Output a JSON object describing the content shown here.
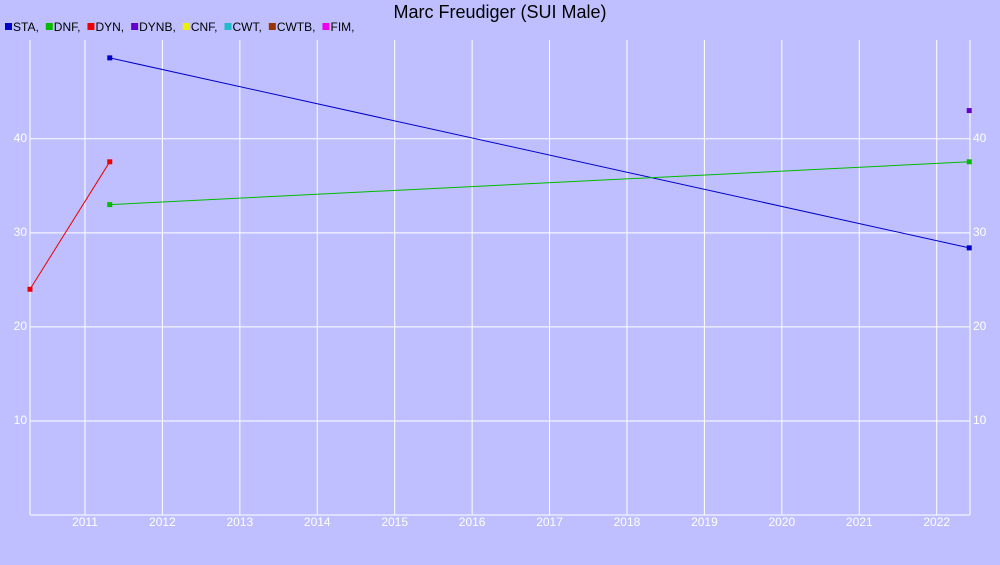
{
  "chart_data": {
    "type": "line",
    "title": "Marc Freudiger (SUI Male)",
    "series": [
      {
        "name": "STA,",
        "color": "#0000cc",
        "x": [
          2011.32,
          2022.42
        ],
        "values": [
          48.6,
          28.4
        ]
      },
      {
        "name": "DNF,",
        "color": "#00bb00",
        "x": [
          2011.32,
          2022.42
        ],
        "values": [
          33.0,
          37.55
        ]
      },
      {
        "name": "DYN,",
        "color": "#ee0000",
        "x": [
          2010.29,
          2011.32
        ],
        "values": [
          24.0,
          37.55
        ]
      },
      {
        "name": "DYNB,",
        "color": "#6600cc",
        "x": [
          2022.42
        ],
        "values": [
          43.0
        ]
      },
      {
        "name": "CNF,",
        "color": "#eeee00",
        "x": [],
        "values": []
      },
      {
        "name": "CWT,",
        "color": "#22bbcc",
        "x": [],
        "values": []
      },
      {
        "name": "CWTB,",
        "color": "#993300",
        "x": [],
        "values": []
      },
      {
        "name": "FIM,",
        "color": "#ee00ee",
        "x": [],
        "values": []
      }
    ],
    "xlim": [
      2010.29,
      2022.43
    ],
    "xticks": [
      2011,
      2012,
      2013,
      2014,
      2015,
      2016,
      2017,
      2018,
      2019,
      2020,
      2021,
      2022
    ],
    "ylim": [
      0,
      50.5
    ],
    "yticks": [
      10,
      20,
      30,
      40
    ],
    "grid": true
  }
}
